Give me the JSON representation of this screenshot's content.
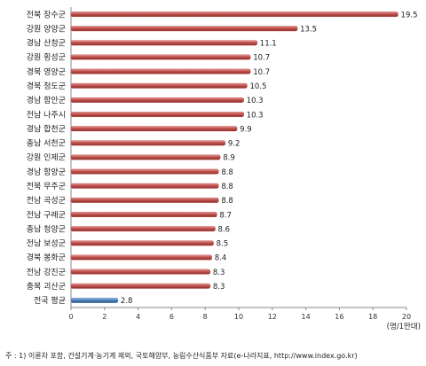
{
  "chart_data": {
    "type": "bar",
    "orientation": "horizontal",
    "categories": [
      "전북 장수군",
      "강원 양양군",
      "경남 산청군",
      "강원 횡성군",
      "경북 영양군",
      "경북 청도군",
      "경남 함안군",
      "전남 나주시",
      "경남 합천군",
      "충남 서천군",
      "강원 인제군",
      "경남 함양군",
      "전북 무주군",
      "전남 곡성군",
      "전남 구례군",
      "충남 청양군",
      "전남 보성군",
      "경북 봉화군",
      "전남 강진군",
      "충북 괴산군",
      "전국 평균"
    ],
    "values": [
      19.5,
      13.5,
      11.1,
      10.7,
      10.7,
      10.5,
      10.3,
      10.3,
      9.9,
      9.2,
      8.9,
      8.8,
      8.8,
      8.8,
      8.7,
      8.6,
      8.5,
      8.4,
      8.3,
      8.3,
      2.8
    ],
    "value_labels": [
      "19.5",
      "13.5",
      "11.1",
      "10.7",
      "10.7",
      "10.5",
      "10.3",
      "10.3",
      "9.9",
      "9.2",
      "8.9",
      "8.8",
      "8.8",
      "8.8",
      "8.7",
      "8.6",
      "8.5",
      "8.4",
      "8.3",
      "8.3",
      "2.8"
    ],
    "xlim": [
      0,
      20
    ],
    "xticks": [
      "0",
      "2",
      "4",
      "6",
      "8",
      "10",
      "12",
      "14",
      "16",
      "18",
      "20"
    ],
    "unit": "(명/1만대)",
    "grid": false,
    "colors": {
      "bar": "#c0504d",
      "highlight": "#4f81bd"
    },
    "highlight_index": 20
  },
  "footnote": "주 : 1) 이륜차 포함, 건설기계·농기계 제외, 국토해양부, 농림수산식품부 자료(e-나라지표, http://www.index.go.kr)"
}
